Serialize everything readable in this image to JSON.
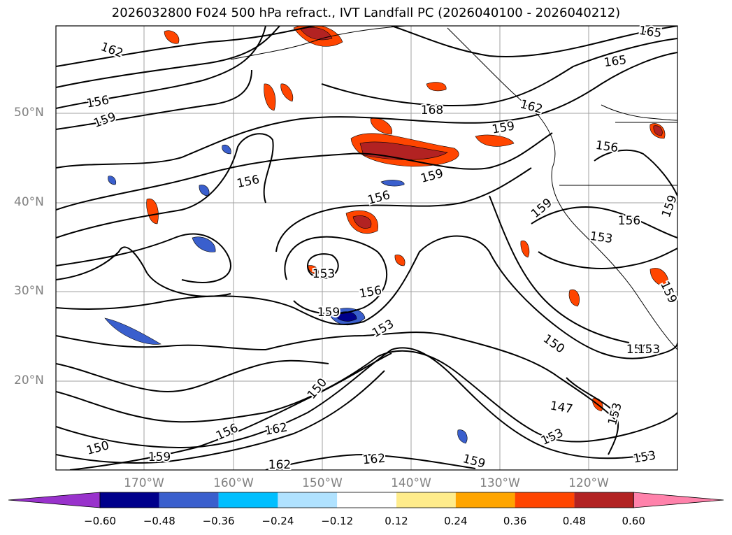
{
  "title": "2026032800 F024 500 hPa refract., IVT Landfall PC (2026040100 - 2026040212)",
  "lat_labels": [
    "50°N",
    "40°N",
    "30°N",
    "20°N"
  ],
  "lon_labels": [
    "170°W",
    "160°W",
    "150°W",
    "140°W",
    "130°W",
    "120°W"
  ],
  "contour_labels": [
    "162",
    "156",
    "159",
    "168",
    "165",
    "165",
    "162",
    "159",
    "156",
    "156",
    "159",
    "156",
    "159",
    "159",
    "153",
    "156",
    "153",
    "159",
    "156",
    "159",
    "153",
    "150",
    "150",
    "150",
    "147",
    "153",
    "153",
    "156",
    "162",
    "150",
    "159",
    "162",
    "162",
    "159",
    "153",
    "153"
  ],
  "colorbar": {
    "ticks": [
      "−0.60",
      "−0.48",
      "−0.36",
      "−0.24",
      "−0.12",
      "0.12",
      "0.24",
      "0.36",
      "0.48",
      "0.60"
    ],
    "colors": [
      "#9932cc",
      "#00008b",
      "#3a5fcd",
      "#00bfff",
      "#b0e2ff",
      "#ffffff",
      "#ffec8b",
      "#ffa500",
      "#ff4500",
      "#b22222",
      "#ff82ab"
    ]
  }
}
